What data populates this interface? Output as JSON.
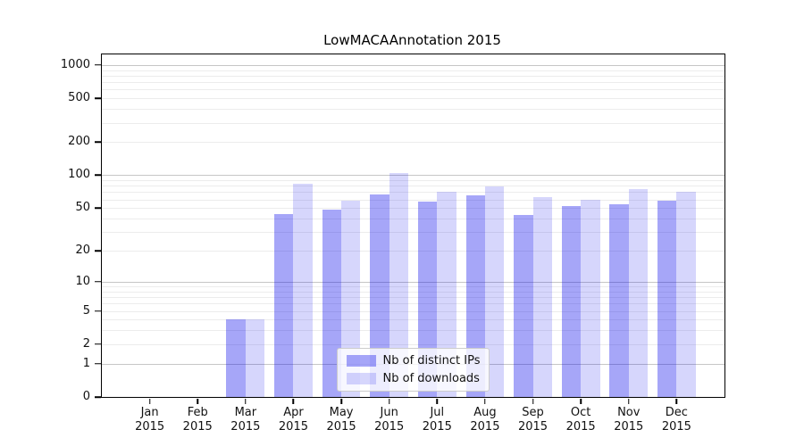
{
  "chart_data": {
    "type": "bar",
    "title": "LowMACAAnnotation 2015",
    "year_label": "2015",
    "months": [
      "Jan",
      "Feb",
      "Mar",
      "Apr",
      "May",
      "Jun",
      "Jul",
      "Aug",
      "Sep",
      "Oct",
      "Nov",
      "Dec"
    ],
    "categories": [
      "Jan 2015",
      "Feb 2015",
      "Mar 2015",
      "Apr 2015",
      "May 2015",
      "Jun 2015",
      "Jul 2015",
      "Aug 2015",
      "Sep 2015",
      "Oct 2015",
      "Nov 2015",
      "Dec 2015"
    ],
    "series": [
      {
        "name": "Nb of distinct IPs",
        "color": "rgba(0,0,235,0.35)",
        "values": [
          0,
          0,
          4,
          44,
          48,
          67,
          57,
          65,
          43,
          52,
          54,
          58
        ]
      },
      {
        "name": "Nb of downloads",
        "color": "rgba(0,0,235,0.16)",
        "values": [
          0,
          0,
          4,
          84,
          59,
          104,
          71,
          79,
          63,
          60,
          75,
          70
        ]
      }
    ],
    "yscale": "log1p",
    "yticks": [
      0,
      1,
      2,
      5,
      10,
      20,
      50,
      100,
      200,
      500,
      1000
    ],
    "ytick_decades": [
      1,
      10,
      100,
      1000
    ],
    "ylim": [
      0,
      1250
    ],
    "grid": true,
    "legend_position": "bottom-center",
    "colors": {
      "grid_major": "#c6c6c6",
      "grid_minor": "#ececec",
      "axis": "#000000",
      "text": "#111111"
    }
  }
}
